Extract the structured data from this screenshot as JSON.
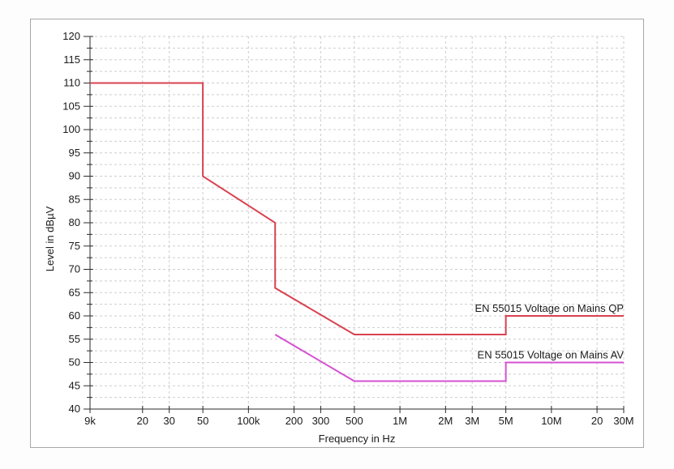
{
  "chart_data": {
    "type": "line",
    "title": "",
    "xlabel": "Frequency in Hz",
    "ylabel": "Level in dBµV",
    "x_scale": "log",
    "x_min": 9000,
    "x_max": 30000000,
    "y_min": 40,
    "y_max": 120,
    "y_major_step": 5,
    "y_minor_step": 2.5,
    "grid": {
      "on": true,
      "color": "#cdcdcd",
      "dash": "3 3"
    },
    "axis_color": "#2a2a2a",
    "label_color": "#1a1a1a",
    "x_ticks": [
      {
        "value": 9000,
        "label": "9k"
      },
      {
        "value": 20000,
        "label": "20"
      },
      {
        "value": 30000,
        "label": "30"
      },
      {
        "value": 50000,
        "label": "50"
      },
      {
        "value": 100000,
        "label": "100k"
      },
      {
        "value": 200000,
        "label": "200"
      },
      {
        "value": 300000,
        "label": "300"
      },
      {
        "value": 500000,
        "label": "500"
      },
      {
        "value": 1000000,
        "label": "1M"
      },
      {
        "value": 2000000,
        "label": "2M"
      },
      {
        "value": 3000000,
        "label": "3M"
      },
      {
        "value": 5000000,
        "label": "5M"
      },
      {
        "value": 10000000,
        "label": "10M"
      },
      {
        "value": 20000000,
        "label": "20"
      },
      {
        "value": 30000000,
        "label": "30M"
      }
    ],
    "series": [
      {
        "name": "EN 55015 Voltage on Mains QP",
        "id": "qp",
        "color": "#d94250",
        "points": [
          [
            9000,
            110
          ],
          [
            50000,
            110
          ],
          [
            50000,
            90
          ],
          [
            150000,
            80
          ],
          [
            150000,
            66
          ],
          [
            500000,
            56
          ],
          [
            5000000,
            56
          ],
          [
            5000000,
            60
          ],
          [
            30000000,
            60
          ]
        ]
      },
      {
        "name": "EN 55015 Voltage on Mains AV",
        "id": "av",
        "color": "#d551d3",
        "points": [
          [
            150000,
            56
          ],
          [
            500000,
            46
          ],
          [
            5000000,
            46
          ],
          [
            5000000,
            50
          ],
          [
            30000000,
            50
          ]
        ]
      }
    ],
    "annotations": [
      {
        "text": "EN 55015 Voltage on Mains QP",
        "color": "#e0495e",
        "x": 30000000,
        "y": 60,
        "series": "qp"
      },
      {
        "text": "EN 55015 Voltage on Mains AV",
        "color": "#e659e2",
        "x": 30000000,
        "y": 50,
        "series": "av"
      }
    ],
    "legend_position": "inline-right-above-lines"
  },
  "frame": {
    "border_color": "#a8a8a8",
    "panel_background": "#ffffff",
    "page_background": "#fdfdfd"
  }
}
